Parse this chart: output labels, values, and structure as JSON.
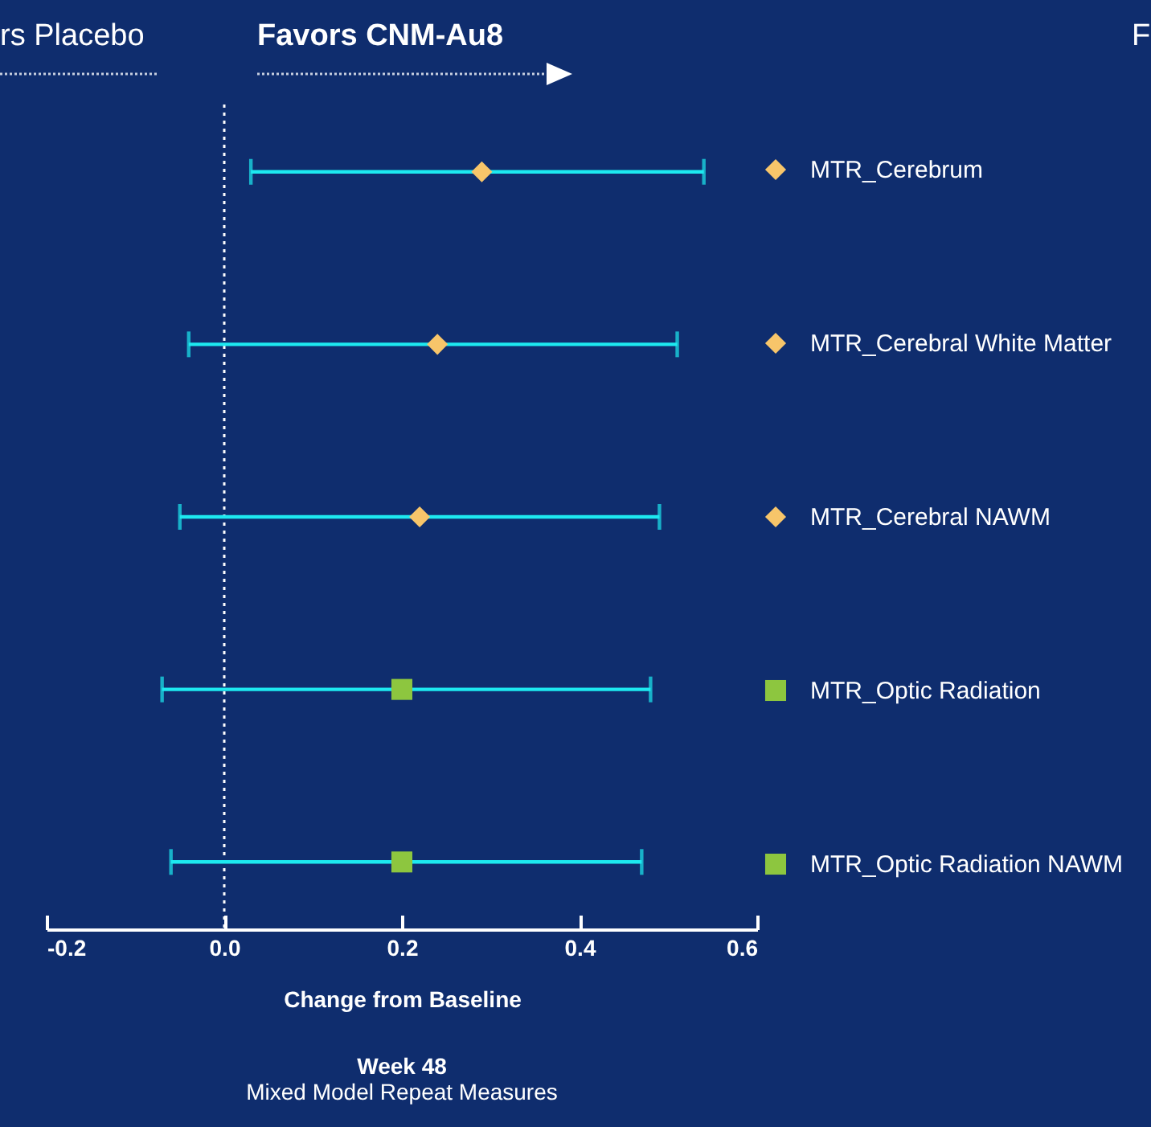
{
  "chart_data": {
    "type": "scatter",
    "orientation": "horizontal",
    "title": "Week 48",
    "subtitle": "Mixed Model Repeat Measures",
    "xlabel": "Change from Baseline",
    "annotations": [
      "rs Placebo",
      "Favors CNM-Au8",
      "F"
    ],
    "categories": [
      null,
      null,
      null,
      null,
      null
    ],
    "series": [
      {
        "name": "MTR_Cerebrum",
        "color": "#f7c56a",
        "marker": "diamond",
        "values": [
          0.29,
          null,
          null,
          null,
          null
        ],
        "errors": [
          [
            0.03,
            0.54
          ],
          null,
          null,
          null,
          null
        ]
      },
      {
        "name": "MTR_Cerebral White Matter",
        "color": "#f7c56a",
        "marker": "diamond",
        "values": [
          null,
          0.24,
          null,
          null,
          null
        ],
        "errors": [
          null,
          [
            -0.04,
            0.51
          ],
          null,
          null,
          null
        ]
      },
      {
        "name": "MTR_Cerebral NAWM",
        "color": "#f7c56a",
        "marker": "diamond",
        "values": [
          null,
          null,
          0.22,
          null,
          null
        ],
        "errors": [
          null,
          null,
          [
            -0.05,
            0.49
          ],
          null,
          null
        ]
      },
      {
        "name": "MTR_Optic Radiation",
        "color": "#8dc63f",
        "marker": "square",
        "values": [
          null,
          null,
          null,
          0.2,
          null
        ],
        "errors": [
          null,
          null,
          null,
          [
            -0.07,
            0.48
          ],
          null
        ]
      },
      {
        "name": "MTR_Optic Radiation NAWM",
        "color": "#8dc63f",
        "marker": "square",
        "values": [
          null,
          null,
          null,
          null,
          0.2
        ],
        "errors": [
          null,
          null,
          null,
          null,
          [
            -0.06,
            0.47
          ]
        ]
      }
    ],
    "xlim": [
      -0.2,
      0.6
    ],
    "xticks": [
      -0.2,
      {
        "value": 0,
        "label": "0.0"
      },
      0.2,
      0.4,
      0.6
    ],
    "ref_lines": [
      {
        "axis": "x",
        "value": 0,
        "line_style": "dotted"
      }
    ],
    "grid": false,
    "legend": "right",
    "tick_labels": "x"
  }
}
